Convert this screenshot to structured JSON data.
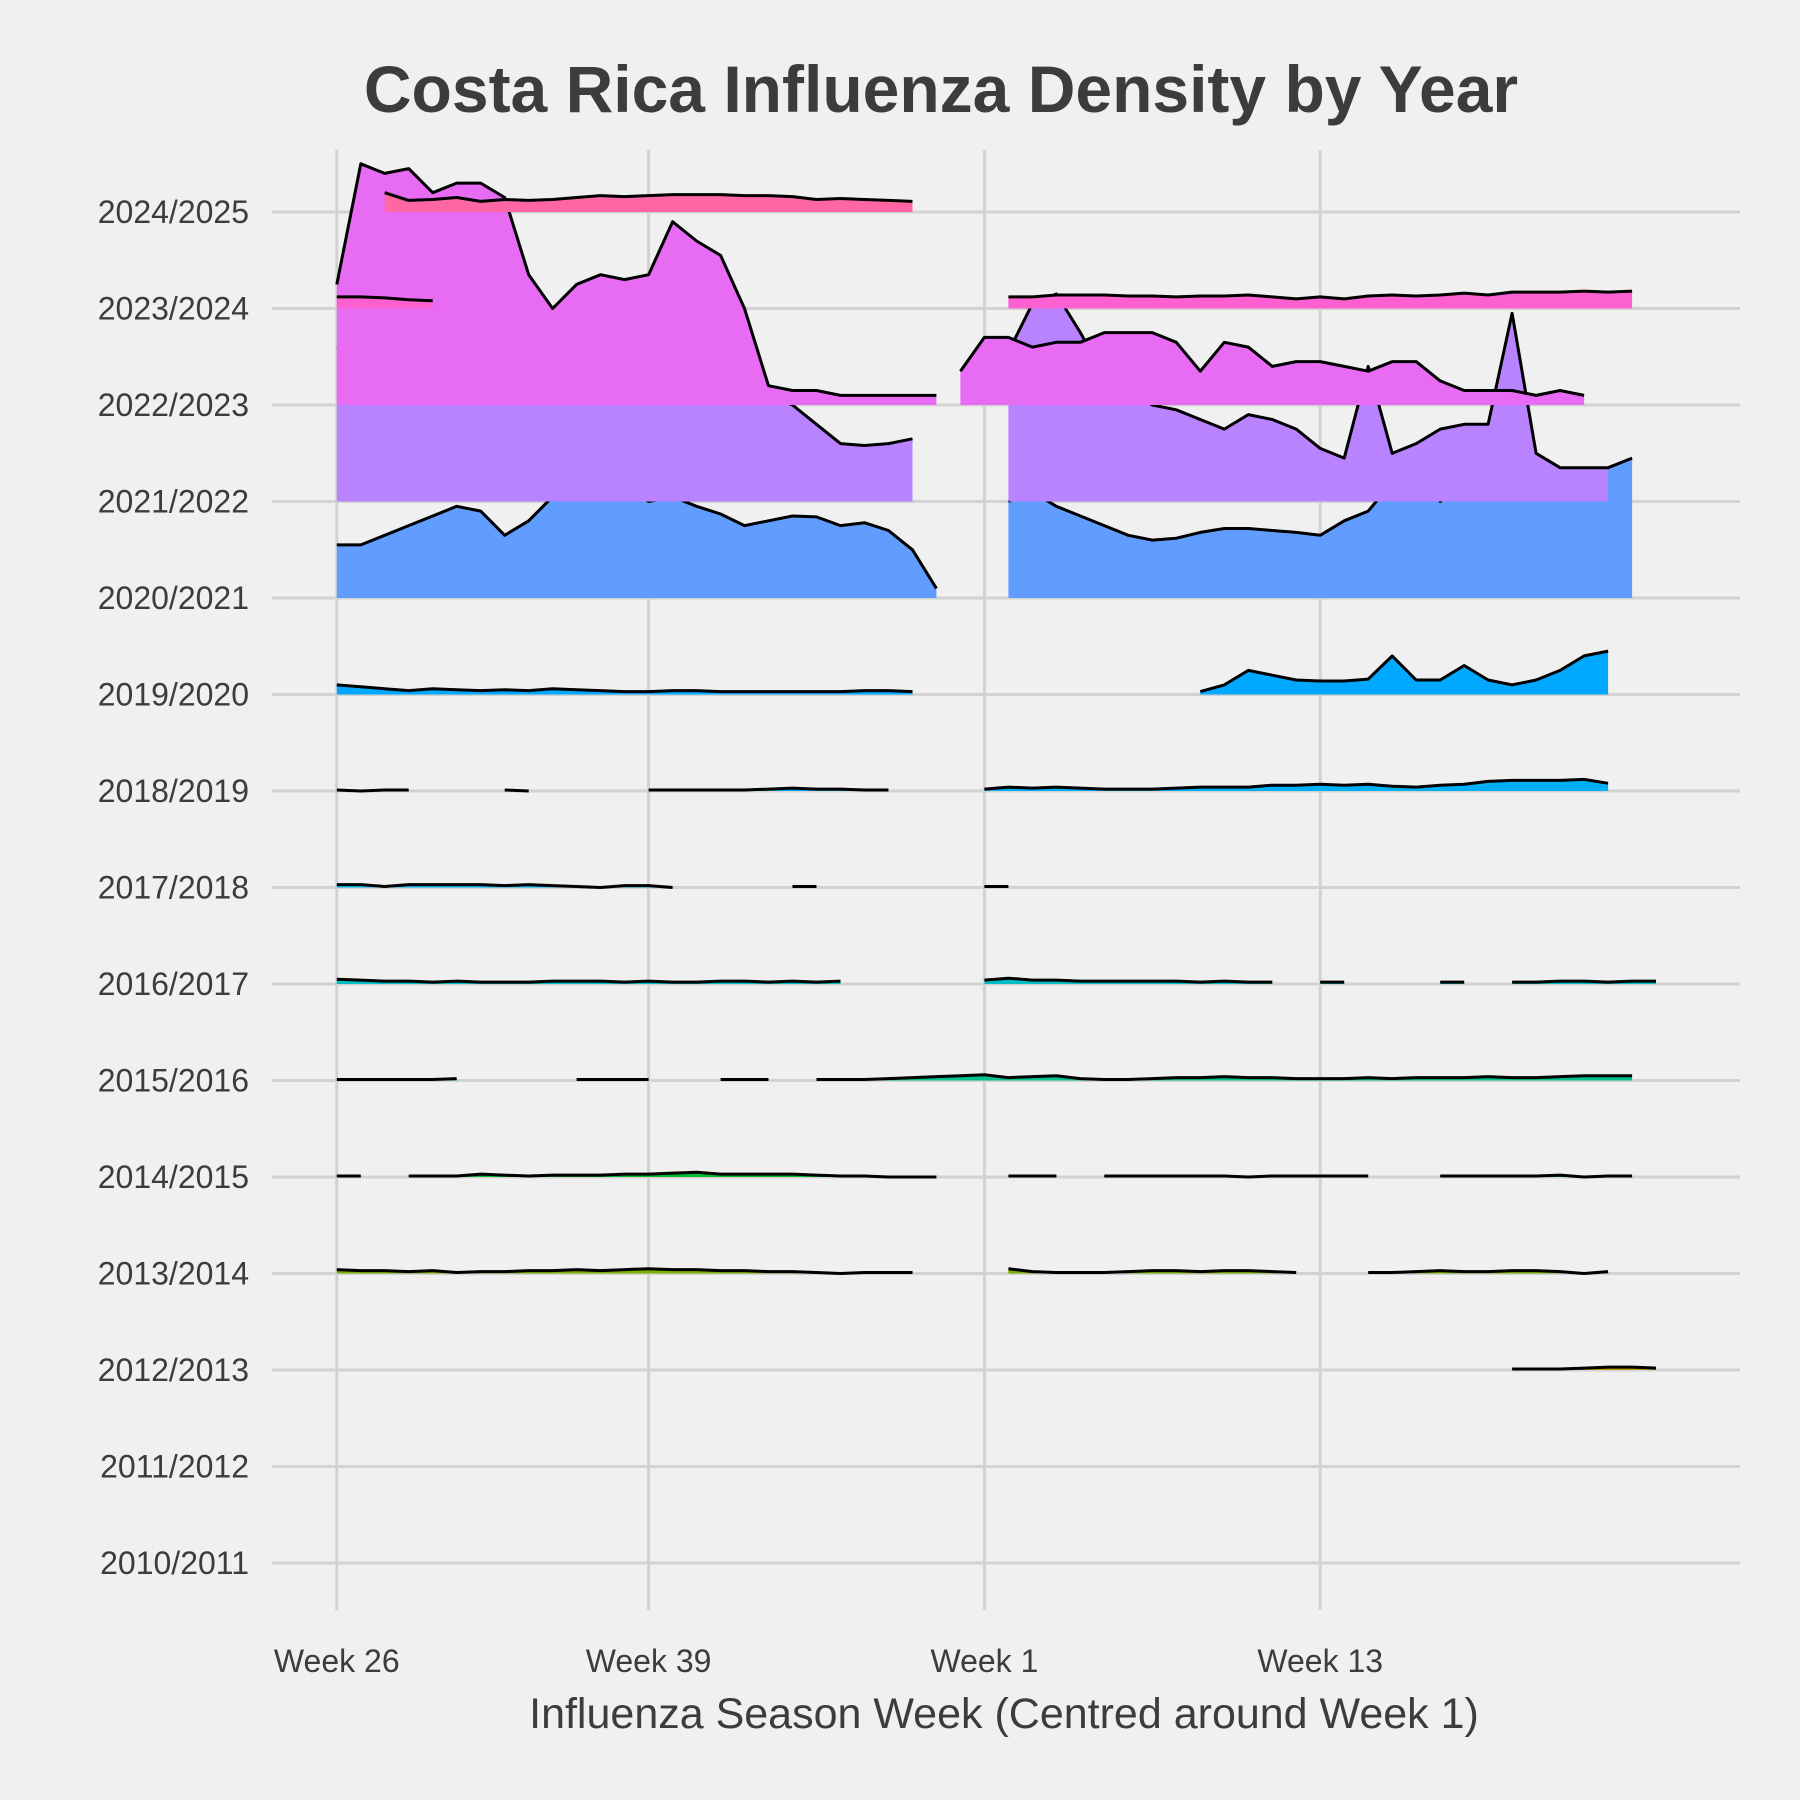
{
  "chart_data": {
    "type": "area",
    "subtype": "ridgeline",
    "title": "Costa Rica Influenza Density by Year",
    "xlabel": "Influenza Season Week (Centred around Week 1)",
    "ylabel": "",
    "x_ticks": [
      {
        "label": "Week 26",
        "x": 0
      },
      {
        "label": "Week 39",
        "x": 13
      },
      {
        "label": "Week 1",
        "x": 27
      },
      {
        "label": "Week 13",
        "x": 41
      }
    ],
    "x_range": [
      -2.7,
      58.5
    ],
    "season_x_min": 0,
    "season_x_max": 55,
    "y_categories": [
      "2010/2011",
      "2011/2012",
      "2012/2013",
      "2013/2014",
      "2014/2015",
      "2015/2016",
      "2016/2017",
      "2017/2018",
      "2018/2019",
      "2019/2020",
      "2020/2021",
      "2021/2022",
      "2022/2023",
      "2023/2024",
      "2024/2025"
    ],
    "ridge_scale": 1.0,
    "grid": true,
    "legend": "none",
    "series": [
      {
        "name": "2010/2011",
        "color": "#F8766D",
        "segments": []
      },
      {
        "name": "2011/2012",
        "color": "#DE8C00",
        "segments": []
      },
      {
        "name": "2012/2013",
        "color": "#B79F00",
        "segments": [
          {
            "start": 49,
            "values": [
              0.01,
              0.01,
              0.01,
              0.02,
              0.03,
              0.03,
              0.02
            ]
          }
        ]
      },
      {
        "name": "2013/2014",
        "color": "#7CAE00",
        "segments": [
          {
            "start": 0,
            "values": [
              0.04,
              0.03,
              0.03,
              0.02,
              0.03,
              0.01,
              0.02,
              0.02,
              0.03,
              0.03,
              0.04,
              0.03,
              0.04,
              0.05,
              0.04,
              0.04,
              0.03,
              0.03,
              0.02,
              0.02,
              0.01,
              0.0,
              0.01,
              0.01,
              0.01
            ]
          },
          {
            "start": 28,
            "values": [
              0.05,
              0.02,
              0.01,
              0.01,
              0.01,
              0.02,
              0.03,
              0.03,
              0.02,
              0.03,
              0.03,
              0.02,
              0.01
            ]
          },
          {
            "start": 43,
            "values": [
              0.01,
              0.01,
              0.02,
              0.03,
              0.02,
              0.02,
              0.03,
              0.03,
              0.02,
              0.0,
              0.02
            ]
          }
        ]
      },
      {
        "name": "2014/2015",
        "color": "#00BA38",
        "segments": [
          {
            "start": 0,
            "values": [
              0.01,
              0.01
            ]
          },
          {
            "start": 3,
            "values": [
              0.01,
              0.01,
              0.01,
              0.03,
              0.02,
              0.01,
              0.02,
              0.02,
              0.02,
              0.03,
              0.03,
              0.04,
              0.05,
              0.03,
              0.03,
              0.03,
              0.03,
              0.02,
              0.01,
              0.01,
              0.0,
              0.0,
              0.0
            ]
          },
          {
            "start": 28,
            "values": [
              0.01,
              0.01,
              0.01
            ]
          },
          {
            "start": 32,
            "values": [
              0.01,
              0.01,
              0.01,
              0.01,
              0.01,
              0.01,
              0.0,
              0.01,
              0.01,
              0.01,
              0.01,
              0.01
            ]
          },
          {
            "start": 46,
            "values": [
              0.01,
              0.01,
              0.01,
              0.01,
              0.01,
              0.02,
              0.0,
              0.01,
              0.01
            ]
          }
        ]
      },
      {
        "name": "2015/2016",
        "color": "#00C08B",
        "segments": [
          {
            "start": 0,
            "values": [
              0.01,
              0.01,
              0.01,
              0.01,
              0.01,
              0.02
            ]
          },
          {
            "start": 10,
            "values": [
              0.01,
              0.01,
              0.01,
              0.01
            ]
          },
          {
            "start": 16,
            "values": [
              0.01,
              0.01,
              0.01
            ]
          },
          {
            "start": 20,
            "values": [
              0.01,
              0.01,
              0.01,
              0.02,
              0.03,
              0.04,
              0.05,
              0.06,
              0.03,
              0.04,
              0.05,
              0.02,
              0.01,
              0.01,
              0.02,
              0.03,
              0.03,
              0.04,
              0.03,
              0.03,
              0.02,
              0.02,
              0.02,
              0.03,
              0.02,
              0.03,
              0.03,
              0.03,
              0.04,
              0.03,
              0.03,
              0.04,
              0.05,
              0.05,
              0.05
            ]
          }
        ]
      },
      {
        "name": "2016/2017",
        "color": "#00BFC4",
        "segments": [
          {
            "start": 0,
            "values": [
              0.05,
              0.04,
              0.03,
              0.03,
              0.02,
              0.03,
              0.02,
              0.02,
              0.02,
              0.03,
              0.03,
              0.03,
              0.02,
              0.03,
              0.02,
              0.02,
              0.03,
              0.03,
              0.02,
              0.03,
              0.02,
              0.03
            ]
          },
          {
            "start": 27,
            "values": [
              0.04,
              0.06,
              0.04,
              0.04,
              0.03,
              0.03,
              0.03,
              0.03,
              0.03,
              0.02,
              0.03,
              0.02,
              0.02
            ]
          },
          {
            "start": 41,
            "values": [
              0.02,
              0.02
            ]
          },
          {
            "start": 46,
            "values": [
              0.02,
              0.02
            ]
          },
          {
            "start": 49,
            "values": [
              0.02,
              0.02,
              0.03,
              0.03,
              0.02,
              0.03,
              0.03
            ]
          }
        ]
      },
      {
        "name": "2017/2018",
        "color": "#00B4F0",
        "segments": [
          {
            "start": 0,
            "values": [
              0.03,
              0.03,
              0.01,
              0.03,
              0.03,
              0.03,
              0.03,
              0.02,
              0.03,
              0.02,
              0.01,
              0.0,
              0.02,
              0.02,
              0.0
            ]
          },
          {
            "start": 19,
            "values": [
              0.01,
              0.01
            ]
          },
          {
            "start": 27,
            "values": [
              0.01,
              0.01
            ]
          }
        ]
      },
      {
        "name": "2018/2019",
        "color": "#00B0F6",
        "segments": [
          {
            "start": 0,
            "values": [
              0.01,
              0.0,
              0.01,
              0.01
            ]
          },
          {
            "start": 7,
            "values": [
              0.01,
              0.0
            ]
          },
          {
            "start": 13,
            "values": [
              0.01,
              0.01,
              0.01,
              0.01,
              0.01,
              0.02,
              0.03,
              0.02,
              0.02,
              0.01,
              0.01
            ]
          },
          {
            "start": 27,
            "values": [
              0.02,
              0.04,
              0.03,
              0.04,
              0.03,
              0.02,
              0.02,
              0.02,
              0.03,
              0.04,
              0.04,
              0.04,
              0.06,
              0.06,
              0.07,
              0.06,
              0.07,
              0.05,
              0.04,
              0.06,
              0.07,
              0.1,
              0.11,
              0.11,
              0.11,
              0.12,
              0.08
            ]
          }
        ]
      },
      {
        "name": "2019/2020",
        "color": "#00A9FF",
        "segments": [
          {
            "start": 0,
            "values": [
              0.1,
              0.08,
              0.06,
              0.04,
              0.06,
              0.05,
              0.04,
              0.05,
              0.04,
              0.06,
              0.05,
              0.04,
              0.03,
              0.03,
              0.04,
              0.04,
              0.03,
              0.03,
              0.03,
              0.03,
              0.03,
              0.03,
              0.04,
              0.04,
              0.03
            ]
          },
          {
            "start": 36,
            "values": [
              0.03,
              0.1,
              0.25,
              0.2,
              0.15,
              0.14,
              0.14,
              0.16,
              0.4,
              0.15,
              0.15,
              0.3,
              0.15,
              0.1,
              0.15,
              0.25,
              0.4,
              0.45
            ]
          }
        ]
      },
      {
        "name": "2020/2021",
        "color": "#619CFF",
        "segments": [
          {
            "start": 0,
            "values": [
              0.55,
              0.55,
              0.65,
              0.75,
              0.85,
              0.95,
              0.9,
              0.65,
              0.8,
              1.05,
              1.3,
              1.25,
              1.15,
              1.0,
              1.05,
              0.95,
              0.87,
              0.75,
              0.8,
              0.85,
              0.84,
              0.75,
              0.78,
              0.7,
              0.5,
              0.1
            ]
          },
          {
            "start": 28,
            "values": [
              1.0,
              1.1,
              0.95,
              0.85,
              0.75,
              0.65,
              0.6,
              0.62,
              0.68,
              0.72,
              0.72,
              0.7,
              0.68,
              0.65,
              0.8,
              0.9,
              1.2,
              1.4,
              1.0,
              1.15,
              1.2,
              1.22,
              1.23,
              1.15,
              1.2,
              1.35,
              1.45
            ]
          }
        ]
      },
      {
        "name": "2021/2022",
        "color": "#B983FF",
        "segments": [
          {
            "start": 0,
            "values": [
              1.6,
              1.6,
              1.5,
              1.5,
              1.55,
              1.6,
              1.85,
              1.95,
              2.05,
              2.0,
              1.95,
              2.0,
              1.6,
              1.45,
              1.25,
              1.2,
              1.25,
              1.05,
              1.1,
              1.0,
              0.8,
              0.6,
              0.58,
              0.6,
              0.65
            ]
          },
          {
            "start": 28,
            "values": [
              1.55,
              2.05,
              2.15,
              1.75,
              1.3,
              1.15,
              1.0,
              0.95,
              0.85,
              0.75,
              0.9,
              0.85,
              0.75,
              0.55,
              0.45,
              1.4,
              0.5,
              0.6,
              0.75,
              0.8,
              0.8,
              1.95,
              0.5,
              0.35,
              0.35,
              0.35
            ]
          }
        ]
      },
      {
        "name": "2022/2023",
        "color": "#E76BF3",
        "segments": [
          {
            "start": 0,
            "values": [
              1.25,
              2.5,
              2.4,
              2.45,
              2.2,
              2.3,
              2.3,
              2.15,
              1.35,
              1.0,
              1.25,
              1.35,
              1.3,
              1.35,
              1.9,
              1.7,
              1.55,
              1.0,
              0.2,
              0.15,
              0.15,
              0.1,
              0.1,
              0.1,
              0.1,
              0.1
            ]
          },
          {
            "start": 26,
            "values": [
              0.35,
              0.7,
              0.7,
              0.6,
              0.65,
              0.65,
              0.75,
              0.75,
              0.75,
              0.65,
              0.35,
              0.65,
              0.6,
              0.4,
              0.45,
              0.45,
              0.4,
              0.35,
              0.45,
              0.45,
              0.25,
              0.15,
              0.15,
              0.15,
              0.1,
              0.15,
              0.1
            ]
          }
        ]
      },
      {
        "name": "2023/2024",
        "color": "#FD61D1",
        "segments": [
          {
            "start": 0,
            "values": [
              0.12,
              0.12,
              0.11,
              0.09,
              0.08
            ]
          },
          {
            "start": 28,
            "values": [
              0.12,
              0.12,
              0.14,
              0.14,
              0.14,
              0.13,
              0.13,
              0.12,
              0.13,
              0.13,
              0.14,
              0.12,
              0.1,
              0.12,
              0.1,
              0.13,
              0.14,
              0.13,
              0.14,
              0.16,
              0.14,
              0.17,
              0.17,
              0.17,
              0.18,
              0.17,
              0.18
            ]
          }
        ]
      },
      {
        "name": "2024/2025",
        "color": "#FF67A4",
        "segments": [
          {
            "start": 2,
            "values": [
              0.2,
              0.12,
              0.13,
              0.15,
              0.11,
              0.13,
              0.12,
              0.13,
              0.15,
              0.17,
              0.16,
              0.17,
              0.18,
              0.18,
              0.18,
              0.17,
              0.17,
              0.16,
              0.13,
              0.14,
              0.13,
              0.12,
              0.11
            ]
          }
        ]
      }
    ]
  }
}
